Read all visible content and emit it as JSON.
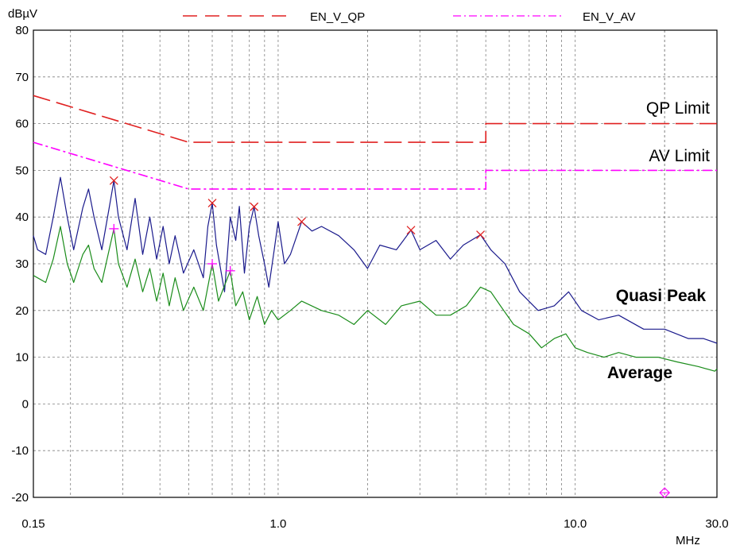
{
  "chart_data": {
    "type": "line",
    "ylabel": "dBµV",
    "xlabel": "MHz",
    "x_scale": "log",
    "xlim": [
      0.15,
      30.0
    ],
    "ylim": [
      -20,
      80
    ],
    "grid": true,
    "legend_position": "top-center",
    "x_tick_labels": [
      {
        "x": 0.15,
        "label": "0.15"
      },
      {
        "x": 1.0,
        "label": "1.0"
      },
      {
        "x": 10.0,
        "label": "10.0"
      },
      {
        "x": 30.0,
        "label": "30.0"
      }
    ],
    "y_tick_labels": [
      "80",
      "70",
      "60",
      "50",
      "40",
      "30",
      "20",
      "10",
      "0",
      "-10",
      "-20"
    ],
    "legend": [
      {
        "name": "EN_V_QP",
        "color": "#e02020",
        "dash": "dash"
      },
      {
        "name": "EN_V_AV",
        "color": "#ff00ff",
        "dash": "dash-dot"
      }
    ],
    "limits": [
      {
        "name": "EN_V_QP",
        "label": "QP Limit",
        "color": "#e02020",
        "points": [
          [
            0.15,
            66
          ],
          [
            0.5,
            56
          ],
          [
            5.0,
            56
          ],
          [
            5.0,
            60
          ],
          [
            30.0,
            60
          ]
        ]
      },
      {
        "name": "EN_V_AV",
        "label": "AV Limit",
        "color": "#ff00ff",
        "points": [
          [
            0.15,
            56
          ],
          [
            0.5,
            46
          ],
          [
            5.0,
            46
          ],
          [
            5.0,
            50
          ],
          [
            30.0,
            50
          ]
        ]
      }
    ],
    "series": [
      {
        "name": "Quasi Peak",
        "color": "#1a1a8c",
        "points": [
          [
            0.15,
            36
          ],
          [
            0.155,
            33
          ],
          [
            0.165,
            32
          ],
          [
            0.175,
            40
          ],
          [
            0.185,
            48.5
          ],
          [
            0.195,
            40
          ],
          [
            0.205,
            33
          ],
          [
            0.22,
            42
          ],
          [
            0.23,
            46
          ],
          [
            0.24,
            40
          ],
          [
            0.255,
            33
          ],
          [
            0.27,
            42
          ],
          [
            0.28,
            47.8
          ],
          [
            0.29,
            40
          ],
          [
            0.31,
            33
          ],
          [
            0.33,
            44
          ],
          [
            0.35,
            32
          ],
          [
            0.37,
            40
          ],
          [
            0.39,
            31
          ],
          [
            0.41,
            38
          ],
          [
            0.43,
            30
          ],
          [
            0.45,
            36
          ],
          [
            0.48,
            28
          ],
          [
            0.52,
            33
          ],
          [
            0.56,
            27
          ],
          [
            0.58,
            38
          ],
          [
            0.6,
            43
          ],
          [
            0.62,
            34
          ],
          [
            0.66,
            24
          ],
          [
            0.69,
            40
          ],
          [
            0.72,
            35
          ],
          [
            0.74,
            42.3
          ],
          [
            0.77,
            28
          ],
          [
            0.8,
            38
          ],
          [
            0.83,
            42.2
          ],
          [
            0.86,
            36
          ],
          [
            0.9,
            30
          ],
          [
            0.93,
            25
          ],
          [
            0.97,
            33
          ],
          [
            1.0,
            39
          ],
          [
            1.05,
            30
          ],
          [
            1.1,
            32
          ],
          [
            1.2,
            39
          ],
          [
            1.3,
            37
          ],
          [
            1.4,
            38
          ],
          [
            1.6,
            36
          ],
          [
            1.8,
            33
          ],
          [
            2.0,
            29
          ],
          [
            2.2,
            34
          ],
          [
            2.5,
            33
          ],
          [
            2.8,
            37.2
          ],
          [
            3.0,
            33
          ],
          [
            3.4,
            35
          ],
          [
            3.8,
            31
          ],
          [
            4.2,
            34
          ],
          [
            4.8,
            36.2
          ],
          [
            5.2,
            33
          ],
          [
            5.8,
            30
          ],
          [
            6.5,
            24
          ],
          [
            7.5,
            20
          ],
          [
            8.5,
            21
          ],
          [
            9.5,
            24
          ],
          [
            10.5,
            20
          ],
          [
            12.0,
            18
          ],
          [
            14.0,
            19
          ],
          [
            17.0,
            16
          ],
          [
            20.0,
            16
          ],
          [
            24.0,
            14
          ],
          [
            27.0,
            14
          ],
          [
            30.0,
            13
          ]
        ]
      },
      {
        "name": "Average",
        "color": "#1a8c1a",
        "points": [
          [
            0.15,
            27.5
          ],
          [
            0.165,
            26
          ],
          [
            0.175,
            31
          ],
          [
            0.185,
            38
          ],
          [
            0.195,
            30
          ],
          [
            0.205,
            26
          ],
          [
            0.22,
            32
          ],
          [
            0.23,
            34
          ],
          [
            0.24,
            29
          ],
          [
            0.255,
            26
          ],
          [
            0.28,
            37.5
          ],
          [
            0.29,
            30
          ],
          [
            0.31,
            25
          ],
          [
            0.33,
            31
          ],
          [
            0.35,
            24
          ],
          [
            0.37,
            29
          ],
          [
            0.39,
            22
          ],
          [
            0.41,
            28
          ],
          [
            0.43,
            21
          ],
          [
            0.45,
            27
          ],
          [
            0.48,
            20
          ],
          [
            0.52,
            25
          ],
          [
            0.56,
            20
          ],
          [
            0.6,
            30
          ],
          [
            0.63,
            22
          ],
          [
            0.69,
            28.5
          ],
          [
            0.72,
            21
          ],
          [
            0.76,
            24
          ],
          [
            0.8,
            18
          ],
          [
            0.85,
            23
          ],
          [
            0.9,
            17
          ],
          [
            0.95,
            20
          ],
          [
            1.0,
            18
          ],
          [
            1.1,
            20
          ],
          [
            1.2,
            22
          ],
          [
            1.4,
            20
          ],
          [
            1.6,
            19
          ],
          [
            1.8,
            17
          ],
          [
            2.0,
            20
          ],
          [
            2.3,
            17
          ],
          [
            2.6,
            21
          ],
          [
            3.0,
            22
          ],
          [
            3.4,
            19
          ],
          [
            3.8,
            19
          ],
          [
            4.3,
            21
          ],
          [
            4.8,
            25
          ],
          [
            5.2,
            24
          ],
          [
            5.6,
            21
          ],
          [
            6.2,
            17
          ],
          [
            7.0,
            15
          ],
          [
            7.7,
            12
          ],
          [
            8.5,
            14
          ],
          [
            9.3,
            15
          ],
          [
            10.0,
            12
          ],
          [
            11.0,
            11
          ],
          [
            12.5,
            10
          ],
          [
            14.0,
            11
          ],
          [
            16.0,
            10
          ],
          [
            19.0,
            10
          ],
          [
            22.0,
            9
          ],
          [
            26.0,
            8
          ],
          [
            29.5,
            7
          ],
          [
            30.0,
            7.5
          ]
        ]
      }
    ],
    "qp_markers": [
      [
        0.28,
        47.8
      ],
      [
        0.6,
        43
      ],
      [
        0.83,
        42.2
      ],
      [
        1.2,
        39
      ],
      [
        2.8,
        37.2
      ],
      [
        4.8,
        36.2
      ]
    ],
    "av_markers": [
      [
        0.28,
        37.5
      ],
      [
        0.6,
        30
      ],
      [
        0.69,
        28.5
      ]
    ],
    "reference_marker": [
      20.0,
      -19
    ],
    "annotations": {
      "qp_limit": "QP Limit",
      "av_limit": "AV Limit",
      "quasi_peak": "Quasi Peak",
      "average": "Average"
    }
  }
}
